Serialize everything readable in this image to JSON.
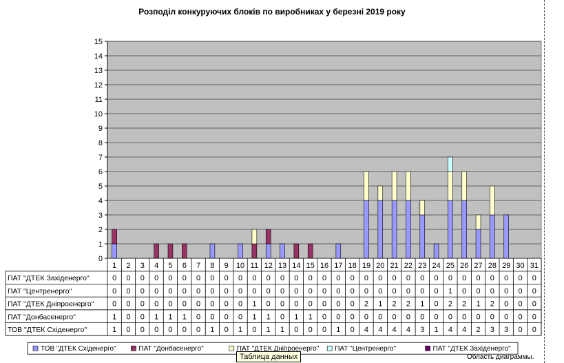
{
  "chart_data": {
    "type": "bar",
    "stacked": true,
    "title": "Розподіл конкуруючих блоків по виробниках у березні  2019 року",
    "categories": [
      "1",
      "2",
      "3",
      "4",
      "5",
      "6",
      "7",
      "8",
      "9",
      "10",
      "11",
      "12",
      "13",
      "14",
      "15",
      "16",
      "17",
      "18",
      "19",
      "20",
      "21",
      "22",
      "23",
      "24",
      "25",
      "26",
      "27",
      "28",
      "29",
      "30",
      "31"
    ],
    "ylim": [
      0,
      15
    ],
    "yticks": [
      0,
      1,
      2,
      3,
      4,
      5,
      6,
      7,
      8,
      9,
      10,
      11,
      12,
      13,
      14,
      15
    ],
    "grid": true,
    "legend_position": "bottom",
    "series": [
      {
        "name": "ТОВ \"ДТЕК Сxiденерго\"",
        "color": "#9999ff",
        "values": [
          1,
          0,
          0,
          0,
          0,
          0,
          0,
          1,
          0,
          1,
          0,
          1,
          1,
          0,
          0,
          0,
          1,
          0,
          4,
          4,
          4,
          4,
          3,
          1,
          4,
          4,
          2,
          3,
          3,
          0,
          0
        ]
      },
      {
        "name": "ПАТ \"Донбасенерго\"",
        "color": "#993366",
        "values": [
          1,
          0,
          0,
          1,
          1,
          1,
          0,
          0,
          0,
          0,
          1,
          1,
          0,
          1,
          1,
          0,
          0,
          0,
          0,
          0,
          0,
          0,
          0,
          0,
          0,
          0,
          0,
          0,
          0,
          0,
          0
        ]
      },
      {
        "name": "ПАТ \"ДТЕК Дніпроенерго\"",
        "color": "#ffffcc",
        "values": [
          0,
          0,
          0,
          0,
          0,
          0,
          0,
          0,
          0,
          0,
          1,
          0,
          0,
          0,
          0,
          0,
          0,
          0,
          2,
          1,
          2,
          2,
          1,
          0,
          2,
          2,
          1,
          2,
          0,
          0,
          0
        ]
      },
      {
        "name": "ПАТ \"Центренерго\"",
        "color": "#ccffff",
        "values": [
          0,
          0,
          0,
          0,
          0,
          0,
          0,
          0,
          0,
          0,
          0,
          0,
          0,
          0,
          0,
          0,
          0,
          0,
          0,
          0,
          0,
          0,
          0,
          0,
          1,
          0,
          0,
          0,
          0,
          0,
          0
        ]
      },
      {
        "name": "ПАТ \"ДТЕК Західенерго\"",
        "color": "#660066",
        "values": [
          0,
          0,
          0,
          0,
          0,
          0,
          0,
          0,
          0,
          0,
          0,
          0,
          0,
          0,
          0,
          0,
          0,
          0,
          0,
          0,
          0,
          0,
          0,
          0,
          0,
          0,
          0,
          0,
          0,
          0,
          0
        ]
      }
    ],
    "table_rows": [
      "ПАТ \"ДТЕК Західенерго\"",
      "ПАТ \"Центренерго\"",
      "ПАТ \"ДТЕК Дніпроенерго\"",
      "ПАТ \"Донбасенерго\"",
      "ТОВ \"ДТЕК Сxiденерго\""
    ],
    "colors": {
      "plot_background": "#c0c0c0",
      "gridline": "#000000",
      "outline": "#000000"
    }
  },
  "ui": {
    "tooltip": "Таблица данных",
    "area_label": "Область диаграммы."
  }
}
